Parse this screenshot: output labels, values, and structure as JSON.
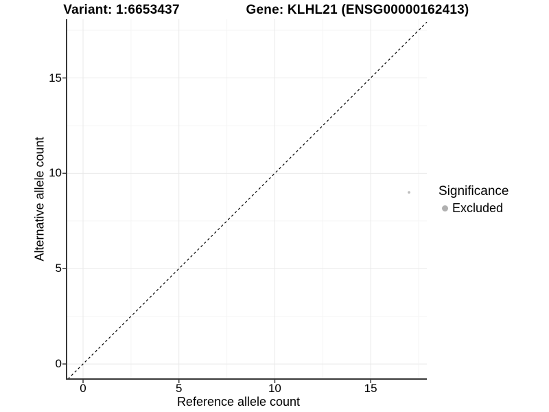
{
  "header": {
    "variant_title": "Variant: 1:6653437",
    "gene_title": "Gene: KLHL21 (ENSG00000162413)"
  },
  "chart_data": {
    "type": "scatter",
    "xlabel": "Reference allele count",
    "ylabel": "Alternative allele count",
    "xlim": [
      -0.86,
      17.93
    ],
    "ylim": [
      -0.79,
      18.08
    ],
    "x_major_ticks": [
      0,
      5,
      10,
      15
    ],
    "y_major_ticks": [
      0,
      5,
      10,
      15
    ],
    "x_minor_ticks": [
      2.5,
      7.5,
      12.5,
      17.5
    ],
    "y_minor_ticks": [
      2.5,
      7.5,
      12.5,
      17.5
    ],
    "grid": "major+minor",
    "reference_line": {
      "type": "identity y=x",
      "style": "dashed",
      "color": "#000000"
    },
    "series": [
      {
        "name": "Excluded",
        "color": "#bebebe",
        "points": [
          {
            "x": 17,
            "y": 9
          }
        ]
      }
    ],
    "legend": {
      "title": "Significance",
      "position": "right",
      "entries": [
        {
          "label": "Excluded",
          "color": "#b0b0b0"
        }
      ]
    },
    "colors": {
      "axis": "#383838",
      "grid_major": "#e9e9e9",
      "grid_minor": "#f5f5f5",
      "point": "#bebebe",
      "text": "#000000"
    }
  }
}
